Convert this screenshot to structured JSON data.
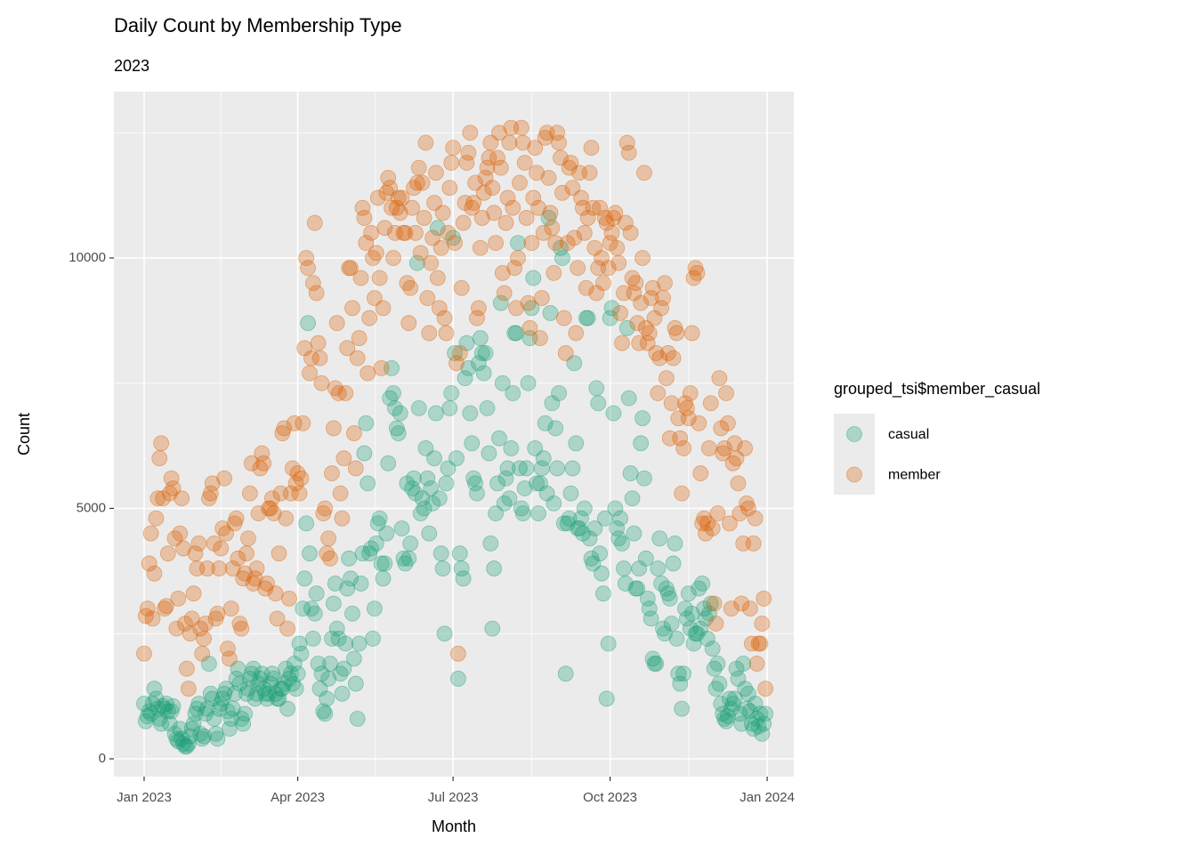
{
  "chart_data": {
    "type": "scatter",
    "title": "Daily Count by Membership Type",
    "subtitle": "2023",
    "x_label": "Month",
    "y_label": "Count",
    "legend_title": "grouped_tsi$member_casual",
    "legend_position": "right",
    "grid": true,
    "xlim": [
      -17.7,
      380.6
    ],
    "ylim": [
      -355,
      13321
    ],
    "xticks": [
      {
        "value": 0,
        "label": "Jan 2023"
      },
      {
        "value": 90,
        "label": "Apr 2023"
      },
      {
        "value": 181,
        "label": "Jul 2023"
      },
      {
        "value": 273,
        "label": "Oct 2023"
      },
      {
        "value": 365,
        "label": "Jan 2024"
      }
    ],
    "yticks": [
      0,
      5000,
      10000
    ],
    "x": [
      0,
      1,
      2,
      3,
      4,
      5,
      6,
      7,
      8,
      9,
      10,
      11,
      12,
      13,
      14,
      15,
      16,
      17,
      18,
      19,
      20,
      21,
      22,
      23,
      24,
      25,
      26,
      27,
      28,
      29,
      30,
      31,
      32,
      33,
      34,
      35,
      36,
      37,
      38,
      39,
      40,
      41,
      42,
      43,
      44,
      45,
      46,
      47,
      48,
      49,
      50,
      51,
      52,
      53,
      54,
      55,
      56,
      57,
      58,
      59,
      60,
      61,
      62,
      63,
      64,
      65,
      66,
      67,
      68,
      69,
      70,
      71,
      72,
      73,
      74,
      75,
      76,
      77,
      78,
      79,
      80,
      81,
      82,
      83,
      84,
      85,
      86,
      87,
      88,
      89,
      90,
      91,
      92,
      93,
      94,
      95,
      96,
      97,
      98,
      99,
      100,
      101,
      102,
      103,
      104,
      105,
      106,
      107,
      108,
      109,
      110,
      111,
      112,
      113,
      114,
      115,
      116,
      117,
      118,
      119,
      120,
      121,
      122,
      123,
      124,
      125,
      126,
      127,
      128,
      129,
      130,
      131,
      132,
      133,
      134,
      135,
      136,
      137,
      138,
      139,
      140,
      141,
      142,
      143,
      144,
      145,
      146,
      147,
      148,
      149,
      150,
      151,
      152,
      153,
      154,
      155,
      156,
      157,
      158,
      159,
      160,
      161,
      162,
      163,
      164,
      165,
      166,
      167,
      168,
      169,
      170,
      171,
      172,
      173,
      174,
      175,
      176,
      177,
      178,
      179,
      180,
      181,
      182,
      183,
      184,
      185,
      186,
      187,
      188,
      189,
      190,
      191,
      192,
      193,
      194,
      195,
      196,
      197,
      198,
      199,
      200,
      201,
      202,
      203,
      204,
      205,
      206,
      207,
      208,
      209,
      210,
      211,
      212,
      213,
      214,
      215,
      216,
      217,
      218,
      219,
      220,
      221,
      222,
      223,
      224,
      225,
      226,
      227,
      228,
      229,
      230,
      231,
      232,
      233,
      234,
      235,
      236,
      237,
      238,
      239,
      240,
      241,
      242,
      243,
      244,
      245,
      246,
      247,
      248,
      249,
      250,
      251,
      252,
      253,
      254,
      255,
      256,
      257,
      258,
      259,
      260,
      261,
      262,
      263,
      264,
      265,
      266,
      267,
      268,
      269,
      270,
      271,
      272,
      273,
      274,
      275,
      276,
      277,
      278,
      279,
      280,
      281,
      282,
      283,
      284,
      285,
      286,
      287,
      288,
      289,
      290,
      291,
      292,
      293,
      294,
      295,
      296,
      297,
      298,
      299,
      300,
      301,
      302,
      303,
      304,
      305,
      306,
      307,
      308,
      309,
      310,
      311,
      312,
      313,
      314,
      315,
      316,
      317,
      318,
      319,
      320,
      321,
      322,
      323,
      324,
      325,
      326,
      327,
      328,
      329,
      330,
      331,
      332,
      333,
      334,
      335,
      336,
      337,
      338,
      339,
      340,
      341,
      342,
      343,
      344,
      345,
      346,
      347,
      348,
      349,
      350,
      351,
      352,
      353,
      354,
      355,
      356,
      357,
      358,
      359,
      360,
      361,
      362,
      363,
      364
    ],
    "series": [
      {
        "name": "casual",
        "color": "#1b9e77",
        "values": [
          1100,
          750,
          850,
          950,
          900,
          1100,
          1400,
          1200,
          1000,
          800,
          700,
          1050,
          1000,
          1100,
          950,
          700,
          950,
          1050,
          500,
          400,
          350,
          600,
          400,
          300,
          250,
          250,
          300,
          450,
          600,
          700,
          900,
          1000,
          1100,
          500,
          400,
          450,
          900,
          1000,
          1900,
          1300,
          1200,
          800,
          500,
          400,
          1000,
          1100,
          1200,
          1300,
          1400,
          950,
          600,
          800,
          1000,
          1300,
          1600,
          1800,
          1500,
          800,
          700,
          900,
          1300,
          1400,
          1600,
          1700,
          1800,
          1200,
          1300,
          1500,
          1600,
          1700,
          1400,
          1300,
          1200,
          1300,
          1500,
          1700,
          1600,
          1300,
          1200,
          1200,
          1400,
          1400,
          1500,
          1800,
          1000,
          1600,
          1700,
          1500,
          1900,
          1400,
          1700,
          2300,
          2100,
          3000,
          3600,
          4700,
          8700,
          4100,
          3000,
          2400,
          2900,
          3300,
          1900,
          1400,
          1700,
          950,
          900,
          1200,
          1600,
          1900,
          2400,
          3100,
          3500,
          2600,
          2400,
          1700,
          1300,
          1800,
          2300,
          3400,
          4000,
          3600,
          2900,
          2000,
          1500,
          800,
          2300,
          3500,
          4100,
          6100,
          6700,
          5500,
          4100,
          4200,
          2400,
          3000,
          4300,
          4700,
          4800,
          3900,
          3600,
          3900,
          4500,
          5900,
          7200,
          7800,
          7300,
          7000,
          6600,
          6500,
          6900,
          4600,
          4000,
          3900,
          5500,
          4000,
          4300,
          5400,
          5600,
          5300,
          9900,
          7000,
          4900,
          5200,
          5000,
          6200,
          5600,
          4500,
          5400,
          5100,
          6000,
          6900,
          10600,
          5200,
          4100,
          3800,
          2500,
          5500,
          5800,
          7000,
          7300,
          10400,
          8100,
          6000,
          1600,
          4100,
          3800,
          3600,
          7600,
          8300,
          7800,
          6900,
          6300,
          5600,
          5500,
          5300,
          7900,
          8400,
          8100,
          7700,
          8100,
          7000,
          6100,
          4300,
          2600,
          3800,
          4900,
          5500,
          6400,
          9100,
          7500,
          5100,
          5600,
          5800,
          5200,
          6200,
          7300,
          8500,
          8500,
          10300,
          5800,
          5000,
          4900,
          5400,
          5800,
          7500,
          8400,
          9000,
          9600,
          6200,
          5500,
          4900,
          5500,
          5800,
          6000,
          6700,
          5300,
          10800,
          8900,
          7100,
          5100,
          6600,
          5800,
          7300,
          10200,
          10000,
          4700,
          1700,
          4700,
          4800,
          5300,
          5800,
          7900,
          6300,
          4600,
          4600,
          4800,
          4500,
          5000,
          8800,
          8800,
          4400,
          4000,
          3900,
          4600,
          7400,
          7100,
          4100,
          3700,
          3300,
          4800,
          1200,
          2300,
          8800,
          9000,
          6900,
          5000,
          4600,
          4400,
          4800,
          4300,
          3800,
          3500,
          8600,
          7200,
          5700,
          5200,
          4500,
          3400,
          3400,
          3800,
          6300,
          6800,
          5600,
          4000,
          3200,
          3000,
          2800,
          2000,
          1900,
          1900,
          3800,
          4400,
          3500,
          2600,
          2500,
          3400,
          3300,
          3200,
          2700,
          3900,
          4300,
          2400,
          1700,
          1500,
          1000,
          1700,
          3000,
          2800,
          3300,
          2600,
          2900,
          2300,
          2500,
          2500,
          3400,
          2600,
          3500,
          3000,
          2800,
          2400,
          2900,
          3100,
          2200,
          1800,
          1400,
          1900,
          1500,
          1100,
          900,
          800,
          750,
          850,
          1200,
          1000,
          1100,
          1200,
          1800,
          1600,
          900,
          700,
          1900,
          1400,
          1000,
          1300,
          950,
          700,
          600,
          1100,
          800,
          650,
          900,
          500,
          700,
          900
        ]
      },
      {
        "name": "member",
        "color": "#d95f02",
        "values": [
          2100,
          2850,
          3000,
          3900,
          4500,
          2800,
          3700,
          4800,
          5200,
          6000,
          6300,
          5200,
          3000,
          3050,
          4100,
          5300,
          5600,
          5400,
          4400,
          2600,
          3200,
          4500,
          5200,
          4200,
          2700,
          1800,
          1400,
          2500,
          2800,
          3300,
          4100,
          3800,
          4300,
          2600,
          2100,
          2400,
          2700,
          3800,
          5200,
          5300,
          5500,
          4300,
          2800,
          2900,
          3800,
          4200,
          4600,
          5600,
          4500,
          2200,
          2000,
          3000,
          3800,
          4700,
          4800,
          4000,
          2700,
          2600,
          3600,
          3700,
          4100,
          4400,
          5300,
          5900,
          3500,
          3600,
          3800,
          4900,
          5800,
          6100,
          5900,
          3400,
          3500,
          5000,
          5000,
          5200,
          4900,
          3300,
          2800,
          4100,
          5300,
          6500,
          6600,
          4800,
          2600,
          3200,
          5300,
          5800,
          6700,
          5500,
          5700,
          5300,
          5600,
          6700,
          8200,
          10000,
          9800,
          7700,
          8000,
          9500,
          10700,
          9300,
          8300,
          8000,
          7500,
          4900,
          5000,
          4100,
          4400,
          4000,
          5700,
          6600,
          7400,
          8700,
          7300,
          5300,
          4800,
          6000,
          7300,
          8200,
          9800,
          9800,
          9000,
          6500,
          5800,
          8000,
          8400,
          9600,
          11000,
          10800,
          10300,
          7700,
          8800,
          10500,
          10000,
          9200,
          10100,
          11200,
          9600,
          7800,
          9000,
          10600,
          11300,
          11600,
          11400,
          11000,
          10000,
          10500,
          11000,
          11200,
          10900,
          11200,
          10500,
          10500,
          9500,
          8700,
          9400,
          11000,
          11400,
          10500,
          11500,
          11800,
          10100,
          11500,
          10800,
          12300,
          9200,
          8500,
          9900,
          10400,
          11100,
          11700,
          9600,
          9000,
          10200,
          10900,
          8800,
          8500,
          10500,
          11400,
          11900,
          12200,
          10300,
          7900,
          2100,
          8100,
          9400,
          10700,
          11100,
          11900,
          12100,
          12500,
          11000,
          11100,
          11500,
          8800,
          9000,
          10200,
          10800,
          11300,
          11600,
          11800,
          12000,
          12300,
          11400,
          10900,
          10300,
          12000,
          12500,
          11800,
          9700,
          9300,
          10700,
          11200,
          12300,
          12600,
          11000,
          9800,
          9000,
          10000,
          11500,
          12600,
          12300,
          11900,
          10800,
          9100,
          8600,
          10300,
          11200,
          12200,
          11700,
          11000,
          8400,
          9200,
          10500,
          12400,
          12500,
          11600,
          10900,
          10600,
          9700,
          10300,
          12500,
          12300,
          12000,
          11300,
          8800,
          8100,
          10300,
          11800,
          11900,
          11400,
          10400,
          8500,
          9800,
          11700,
          11200,
          11000,
          10500,
          9400,
          10800,
          11700,
          12200,
          11000,
          10200,
          9300,
          9800,
          11000,
          10000,
          9500,
          10800,
          10700,
          9800,
          10300,
          10500,
          10800,
          10900,
          10200,
          9900,
          8900,
          8300,
          9300,
          10700,
          12300,
          12100,
          10500,
          9600,
          9300,
          9500,
          8700,
          8300,
          9100,
          10000,
          11700,
          8600,
          8300,
          8500,
          9200,
          9400,
          8800,
          8100,
          7300,
          8000,
          9000,
          9200,
          9500,
          7600,
          8100,
          6400,
          7100,
          8000,
          8600,
          8500,
          6800,
          6400,
          5300,
          6200,
          7100,
          7000,
          6800,
          7300,
          8500,
          9600,
          9800,
          9700,
          6700,
          5700,
          4700,
          4800,
          4500,
          4700,
          6200,
          7100,
          4600,
          3100,
          2700,
          4900,
          7600,
          6600,
          6100,
          6200,
          7300,
          6700,
          4700,
          3000,
          5900,
          6300,
          6000,
          5500,
          4900,
          3100,
          4300,
          6200,
          5100,
          5000,
          3000,
          2300,
          4300,
          4800,
          1900,
          2300,
          2300,
          2700,
          3200,
          1400
        ]
      }
    ]
  }
}
